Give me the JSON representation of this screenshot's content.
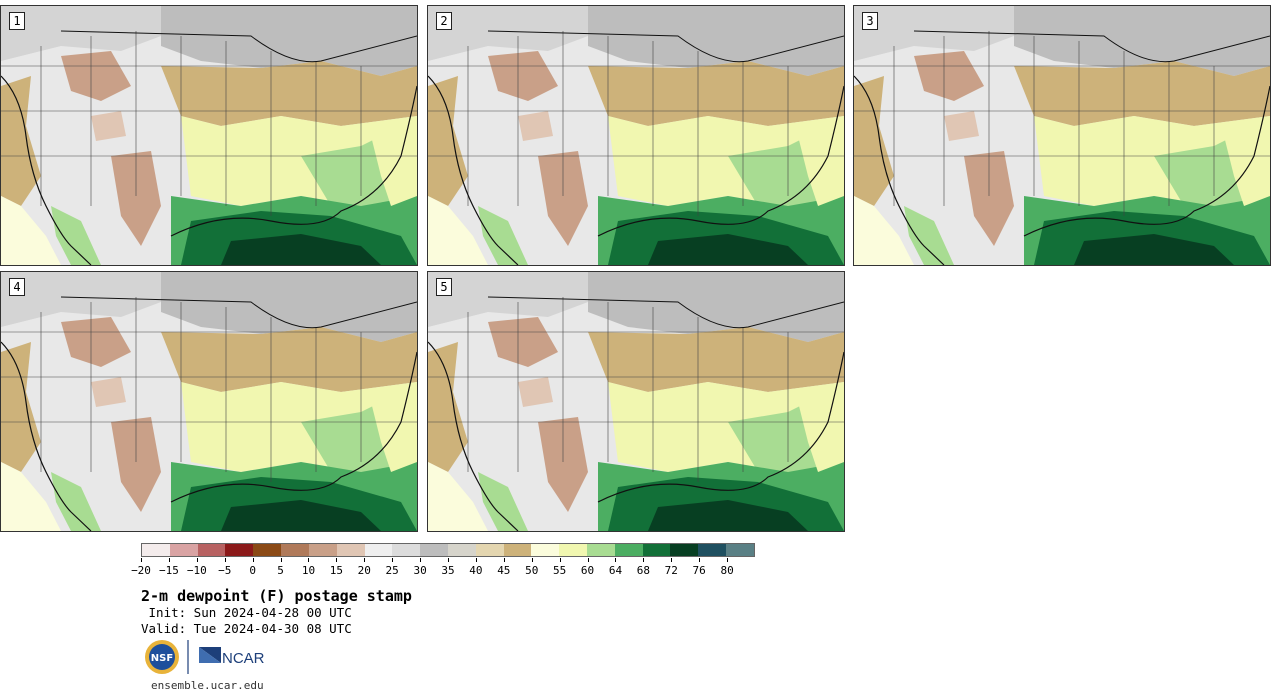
{
  "panels": [
    {
      "label": "1"
    },
    {
      "label": "2"
    },
    {
      "label": "3"
    },
    {
      "label": "4"
    },
    {
      "label": "5"
    }
  ],
  "colorbar": {
    "colors": [
      "#f4ecec",
      "#d9a3a3",
      "#b86262",
      "#8c1a1a",
      "#8b4a16",
      "#b07a5a",
      "#c9a088",
      "#e0c6b4",
      "#efefef",
      "#dcdcdc",
      "#bdbdbd",
      "#d6d4cb",
      "#e4d6b0",
      "#cdb27a",
      "#fbfcdc",
      "#f1f7b0",
      "#a8dc92",
      "#4cae62",
      "#127038",
      "#073f22",
      "#1f5060",
      "#5a8085"
    ],
    "tick_labels": [
      "−20",
      "−15",
      "−10",
      "−5",
      "0",
      "5",
      "10",
      "15",
      "20",
      "25",
      "30",
      "35",
      "40",
      "45",
      "50",
      "55",
      "60",
      "64",
      "68",
      "72",
      "76",
      "80"
    ]
  },
  "title": "2-m dewpoint (F) postage stamp",
  "init": " Init: Sun 2024-04-28 00 UTC",
  "valid": "Valid: Tue 2024-04-30 08 UTC",
  "logos": {
    "nsf": "NSF",
    "ncar": "NCAR"
  },
  "website": "ensemble.ucar.edu"
}
